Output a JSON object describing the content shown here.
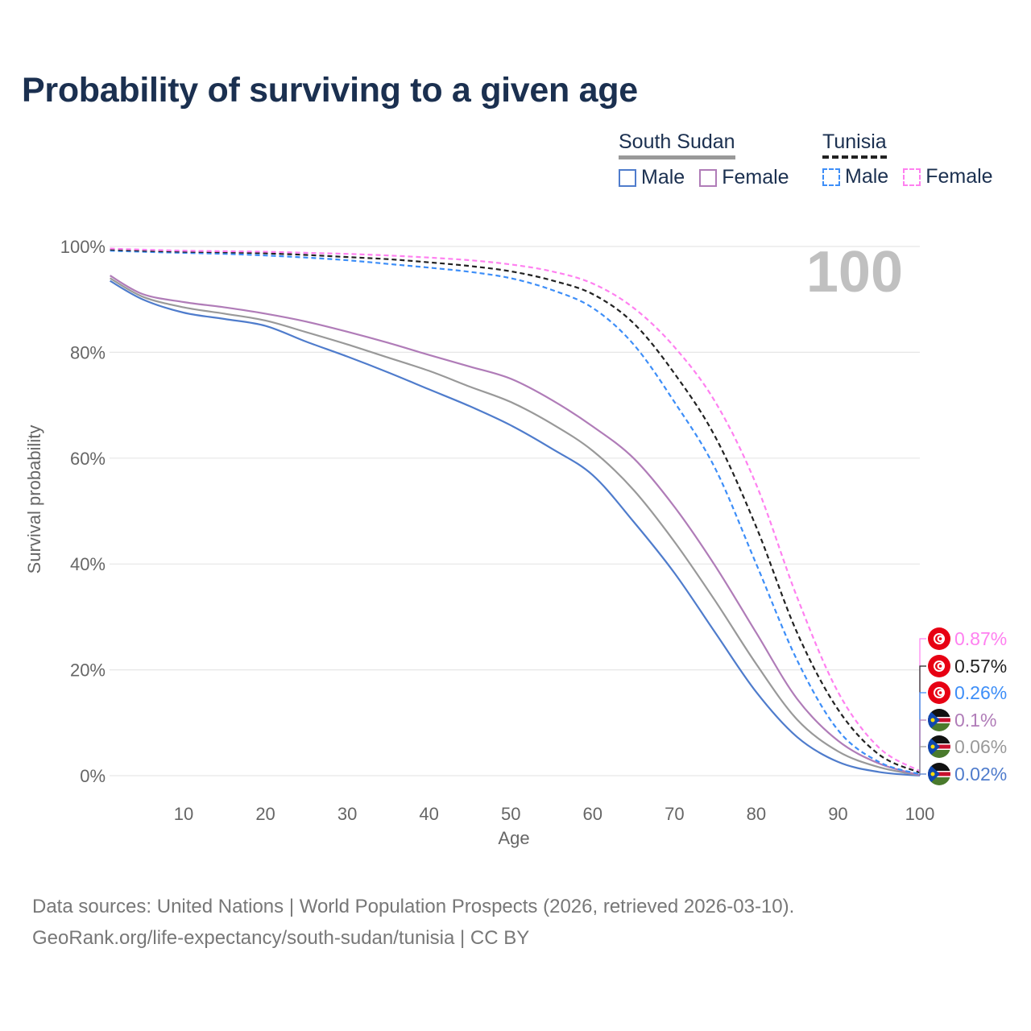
{
  "title": "Probability of surviving to a given age",
  "legend": {
    "groups": [
      {
        "country": "South Sudan",
        "items": [
          {
            "label": "Male",
            "color": "#4f7ccc",
            "dashed": false
          },
          {
            "label": "Female",
            "color": "#b07cb8",
            "dashed": false
          }
        ],
        "underline_color": "#999999",
        "underline_dashed": false
      },
      {
        "country": "Tunisia",
        "items": [
          {
            "label": "Male",
            "color": "#3d8ef8",
            "dashed": true
          },
          {
            "label": "Female",
            "color": "#ff80f0",
            "dashed": true
          }
        ],
        "underline_color": "#222222",
        "underline_dashed": true
      }
    ]
  },
  "age_marker": "100",
  "footer": {
    "line1": "Data sources: United Nations | World Population Prospects (2026, retrieved 2026-03-10).",
    "line2": "GeoRank.org/life-expectancy/south-sudan/tunisia | CC BY"
  },
  "chart_data": {
    "type": "line",
    "title": "Probability of surviving to a given age",
    "xlabel": "Age",
    "ylabel": "Survival probability",
    "xlim": [
      1,
      100
    ],
    "ylim": [
      0,
      100
    ],
    "xticks": [
      10,
      20,
      30,
      40,
      50,
      60,
      70,
      80,
      90,
      100
    ],
    "yticks": [
      0,
      20,
      40,
      60,
      80,
      100
    ],
    "ytick_labels": [
      "0%",
      "20%",
      "40%",
      "60%",
      "80%",
      "100%"
    ],
    "grid": true,
    "legend_position": "top-right",
    "x": [
      1,
      5,
      10,
      15,
      20,
      25,
      30,
      35,
      40,
      45,
      50,
      55,
      60,
      65,
      70,
      75,
      80,
      85,
      90,
      95,
      100
    ],
    "series": [
      {
        "name": "Tunisia Female",
        "color": "#ff80f0",
        "dashed": true,
        "flag": "tunisia",
        "end_label": "0.87%",
        "values": [
          99.6,
          99.4,
          99.2,
          99.1,
          99.0,
          98.8,
          98.6,
          98.3,
          97.9,
          97.4,
          96.6,
          95.3,
          93.0,
          88.4,
          81.0,
          70.6,
          55.0,
          33.7,
          15.8,
          5.3,
          0.87
        ]
      },
      {
        "name": "Tunisia",
        "color": "#222222",
        "dashed": true,
        "flag": "tunisia",
        "end_label": "0.57%",
        "values": [
          99.4,
          99.2,
          99.0,
          98.9,
          98.7,
          98.4,
          98.0,
          97.6,
          97.0,
          96.3,
          95.3,
          93.6,
          91.0,
          85.5,
          76.0,
          64.0,
          47.0,
          27.0,
          12.5,
          4.0,
          0.57
        ]
      },
      {
        "name": "Tunisia Male",
        "color": "#3d8ef8",
        "dashed": true,
        "flag": "tunisia",
        "end_label": "0.26%",
        "values": [
          99.2,
          99.0,
          98.8,
          98.6,
          98.3,
          97.9,
          97.4,
          96.7,
          96.0,
          95.2,
          94.0,
          91.8,
          88.4,
          81.5,
          70.6,
          58.0,
          40.0,
          21.8,
          8.6,
          2.6,
          0.26
        ]
      },
      {
        "name": "South Sudan Female",
        "color": "#b07cb8",
        "dashed": false,
        "flag": "south-sudan",
        "end_label": "0.1%",
        "values": [
          94.5,
          91.0,
          89.5,
          88.5,
          87.3,
          85.8,
          83.9,
          81.8,
          79.5,
          77.3,
          75.0,
          71.0,
          66.0,
          60.0,
          50.8,
          39.6,
          27.0,
          14.5,
          6.6,
          2.3,
          0.1
        ]
      },
      {
        "name": "South Sudan",
        "color": "#999999",
        "dashed": false,
        "flag": "south-sudan",
        "end_label": "0.06%",
        "values": [
          94.0,
          90.5,
          88.5,
          87.3,
          86.0,
          83.8,
          81.5,
          79.0,
          76.5,
          73.5,
          70.6,
          66.5,
          61.4,
          54.0,
          44.2,
          33.0,
          21.1,
          10.6,
          4.6,
          1.6,
          0.06
        ]
      },
      {
        "name": "South Sudan Male",
        "color": "#4f7ccc",
        "dashed": false,
        "flag": "south-sudan",
        "end_label": "0.02%",
        "values": [
          93.5,
          90.0,
          87.5,
          86.3,
          85.0,
          82.0,
          79.2,
          76.2,
          73.0,
          69.8,
          66.2,
          61.8,
          56.8,
          48.0,
          38.3,
          27.0,
          15.8,
          7.3,
          2.6,
          0.7,
          0.02
        ]
      }
    ]
  }
}
